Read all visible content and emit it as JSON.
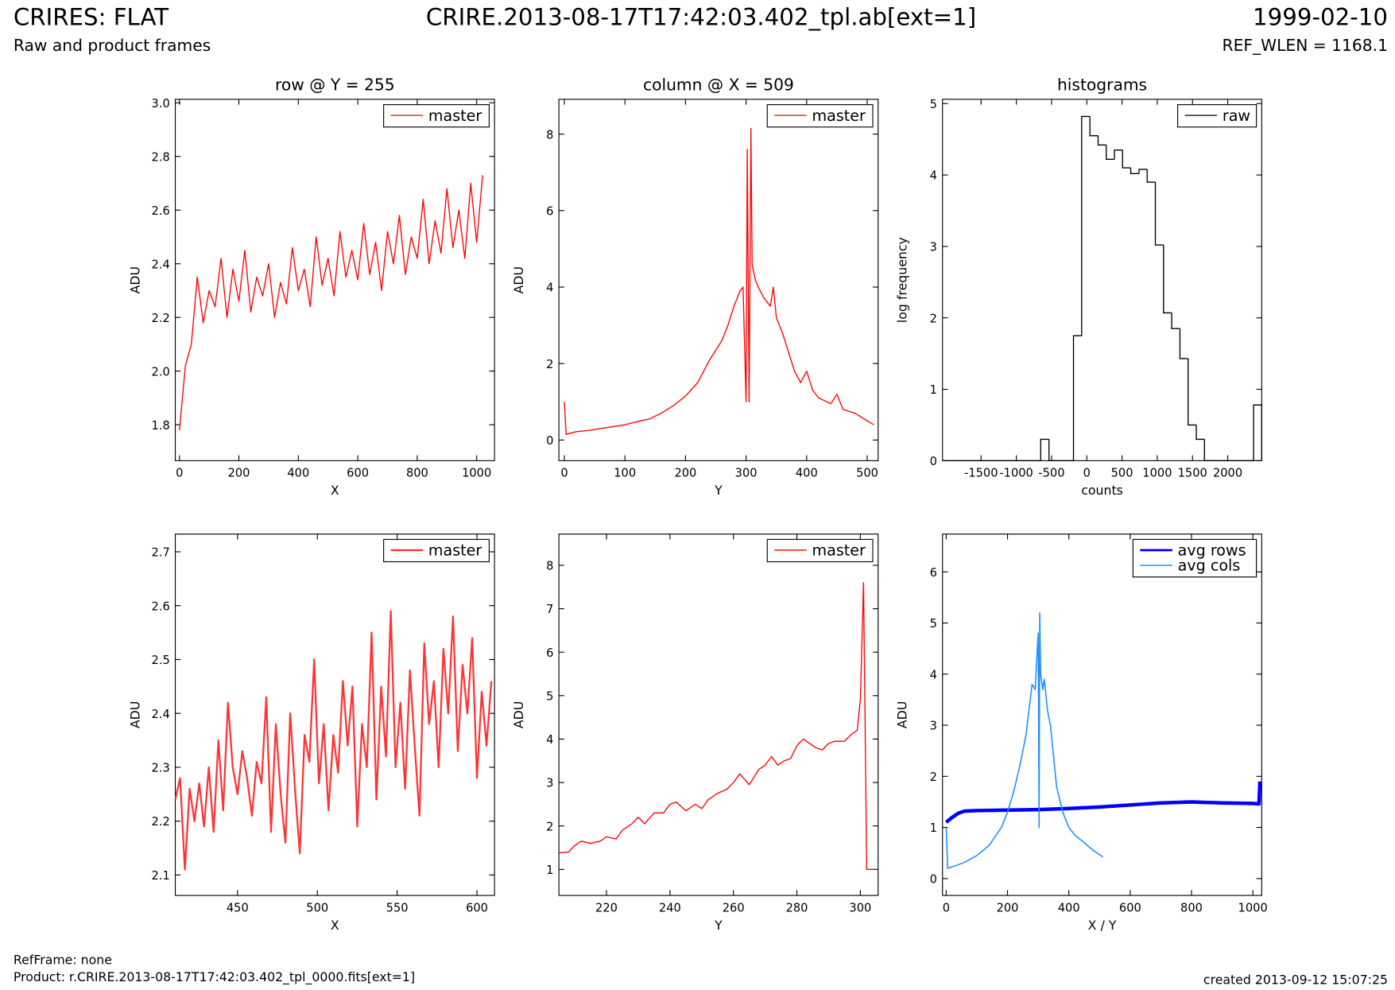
{
  "header": {
    "title": "CRIRES: FLAT",
    "subtitle": "Raw and product frames",
    "center": "CRIRE.2013-08-17T17:42:03.402_tpl.ab[ext=1]",
    "date": "1999-02-10",
    "ref_wlen": "REF_WLEN = 1168.1"
  },
  "footer": {
    "refframe": "RefFrame: none",
    "product": "Product: r.CRIRE.2013-08-17T17:42:03.402_tpl_0000.fits[ext=1]",
    "created": "created 2013-09-12 15:07:25"
  },
  "chart_data": [
    {
      "type": "line",
      "title": "row @ Y = 255",
      "xlabel": "X",
      "ylabel": "ADU",
      "xlim": [
        -14,
        1060
      ],
      "ylim": [
        1.666,
        3.013
      ],
      "xticks": [
        0,
        200,
        400,
        600,
        800,
        1000
      ],
      "yticks": [
        1.8,
        {
          "value": 2,
          "label": "2.0"
        },
        2.2,
        2.4,
        2.6,
        2.8,
        {
          "value": 3,
          "label": "3.0"
        }
      ],
      "legend": "upper right",
      "series": [
        {
          "name": "master",
          "color": "#ff0000",
          "width": 1.2,
          "x": [
            0,
            20,
            40,
            60,
            80,
            100,
            120,
            140,
            160,
            180,
            200,
            220,
            240,
            260,
            280,
            300,
            320,
            340,
            360,
            380,
            400,
            420,
            440,
            460,
            480,
            500,
            520,
            540,
            560,
            580,
            600,
            620,
            640,
            660,
            680,
            700,
            720,
            740,
            760,
            780,
            800,
            820,
            840,
            860,
            880,
            900,
            920,
            940,
            960,
            980,
            1000,
            1020
          ],
          "values": [
            1.78,
            2.02,
            2.1,
            2.35,
            2.18,
            2.3,
            2.24,
            2.42,
            2.2,
            2.38,
            2.26,
            2.45,
            2.22,
            2.35,
            2.28,
            2.4,
            2.2,
            2.33,
            2.25,
            2.46,
            2.3,
            2.38,
            2.24,
            2.5,
            2.32,
            2.42,
            2.28,
            2.52,
            2.35,
            2.45,
            2.34,
            2.55,
            2.36,
            2.48,
            2.3,
            2.52,
            2.4,
            2.58,
            2.36,
            2.5,
            2.42,
            2.64,
            2.4,
            2.56,
            2.44,
            2.68,
            2.46,
            2.6,
            2.42,
            2.7,
            2.48,
            2.73
          ]
        }
      ]
    },
    {
      "type": "line",
      "title": "column @ X = 509",
      "xlabel": "Y",
      "ylabel": "ADU",
      "xlim": [
        -9,
        518
      ],
      "ylim": [
        -0.54,
        8.91
      ],
      "xticks": [
        0,
        100,
        200,
        300,
        400,
        500
      ],
      "yticks": [
        0,
        2,
        4,
        6,
        8
      ],
      "legend": "upper right",
      "series": [
        {
          "name": "master",
          "color": "#ff0000",
          "width": 1.2,
          "x": [
            0,
            3,
            20,
            40,
            60,
            80,
            100,
            120,
            140,
            160,
            180,
            200,
            220,
            240,
            260,
            270,
            280,
            290,
            295,
            300,
            302,
            305,
            308,
            310,
            315,
            320,
            330,
            340,
            345,
            350,
            360,
            370,
            380,
            390,
            400,
            410,
            420,
            440,
            450,
            460,
            480,
            500,
            511
          ],
          "values": [
            1.0,
            0.15,
            0.22,
            0.25,
            0.3,
            0.35,
            0.4,
            0.48,
            0.55,
            0.7,
            0.9,
            1.15,
            1.5,
            2.1,
            2.6,
            3.0,
            3.5,
            3.9,
            4.0,
            1.0,
            7.6,
            1.0,
            8.15,
            4.6,
            4.2,
            4.0,
            3.7,
            3.5,
            4.0,
            3.2,
            2.8,
            2.3,
            1.8,
            1.5,
            1.8,
            1.3,
            1.1,
            0.95,
            1.2,
            0.8,
            0.7,
            0.5,
            0.4
          ]
        }
      ]
    },
    {
      "type": "histogram",
      "title": "histograms",
      "xlabel": "counts",
      "ylabel": "log frequency",
      "xlim": [
        -2048,
        2483
      ],
      "ylim": [
        0,
        5.06
      ],
      "xticks": [
        -1500,
        -1000,
        -500,
        0,
        500,
        1000,
        1500,
        2000
      ],
      "yticks": [
        0,
        1,
        2,
        3,
        4,
        5
      ],
      "legend": "upper right",
      "bins": [
        -2048,
        -1932,
        -1816,
        -1699,
        -1583,
        -1467,
        -1351,
        -1235,
        -1118,
        -1002,
        -886,
        -770,
        -654,
        -537,
        -421,
        -305,
        -189,
        -73,
        44,
        160,
        276,
        392,
        508,
        624,
        741,
        857,
        973,
        1089,
        1205,
        1322,
        1438,
        1554,
        1670,
        1786,
        1903,
        2019,
        2135,
        2251,
        2367,
        2483
      ],
      "series": [
        {
          "name": "raw",
          "color": "#000000",
          "width": 1.2,
          "values": [
            0,
            0,
            0,
            0,
            0,
            0,
            0,
            0,
            0,
            0,
            0,
            0,
            0.3,
            0,
            0,
            0,
            1.75,
            4.82,
            4.55,
            4.42,
            4.22,
            4.35,
            4.1,
            4.02,
            4.08,
            3.9,
            3.02,
            2.07,
            1.85,
            1.43,
            0.5,
            0.3,
            0,
            0,
            0,
            0,
            0,
            0,
            0.78
          ]
        }
      ]
    },
    {
      "type": "line",
      "xlabel": "X",
      "ylabel": "ADU",
      "xlim": [
        411,
        611
      ],
      "ylim": [
        2.062,
        2.733
      ],
      "xticks": [
        450,
        500,
        550,
        600
      ],
      "yticks": [
        2.1,
        2.2,
        2.3,
        2.4,
        2.5,
        2.6,
        2.7
      ],
      "legend": "upper right",
      "series": [
        {
          "name": "master",
          "color": "#ff3333",
          "width": 2,
          "x": [
            411,
            414,
            417,
            420,
            423,
            426,
            429,
            432,
            435,
            438,
            441,
            444,
            447,
            450,
            453,
            456,
            459,
            462,
            465,
            468,
            471,
            474,
            477,
            480,
            483,
            486,
            489,
            492,
            495,
            498,
            501,
            504,
            507,
            510,
            513,
            516,
            519,
            522,
            525,
            528,
            531,
            534,
            537,
            540,
            543,
            546,
            549,
            552,
            555,
            558,
            561,
            564,
            567,
            570,
            573,
            576,
            579,
            582,
            585,
            588,
            591,
            594,
            597,
            600,
            603,
            606,
            609
          ],
          "values": [
            2.24,
            2.28,
            2.11,
            2.26,
            2.2,
            2.27,
            2.19,
            2.3,
            2.18,
            2.35,
            2.22,
            2.42,
            2.3,
            2.25,
            2.33,
            2.28,
            2.21,
            2.31,
            2.27,
            2.43,
            2.18,
            2.38,
            2.25,
            2.16,
            2.4,
            2.26,
            2.14,
            2.36,
            2.31,
            2.5,
            2.27,
            2.38,
            2.22,
            2.36,
            2.29,
            2.46,
            2.34,
            2.45,
            2.19,
            2.38,
            2.3,
            2.55,
            2.24,
            2.45,
            2.32,
            2.59,
            2.3,
            2.42,
            2.26,
            2.48,
            2.34,
            2.21,
            2.53,
            2.38,
            2.46,
            2.3,
            2.52,
            2.4,
            2.58,
            2.33,
            2.49,
            2.4,
            2.54,
            2.28,
            2.44,
            2.34,
            2.46
          ]
        }
      ]
    },
    {
      "type": "line",
      "xlabel": "Y",
      "ylabel": "ADU",
      "xlim": [
        205,
        305.6
      ],
      "ylim": [
        0.4,
        8.72
      ],
      "xticks": [
        220,
        240,
        260,
        280,
        300
      ],
      "yticks": [
        1,
        2,
        3,
        4,
        5,
        6,
        7,
        8
      ],
      "legend": "upper right",
      "series": [
        {
          "name": "master",
          "color": "#ff0000",
          "width": 1.2,
          "x": [
            205,
            208,
            210,
            212,
            215,
            218,
            220,
            223,
            225,
            228,
            230,
            232,
            235,
            238,
            240,
            242,
            245,
            248,
            250,
            252,
            255,
            258,
            260,
            262,
            265,
            268,
            270,
            272,
            274,
            276,
            278,
            280,
            282,
            284,
            286,
            288,
            290,
            292,
            295,
            297,
            299,
            300,
            301,
            302,
            304
          ],
          "values": [
            1.38,
            1.4,
            1.55,
            1.65,
            1.6,
            1.65,
            1.75,
            1.7,
            1.9,
            2.05,
            2.2,
            2.05,
            2.3,
            2.3,
            2.5,
            2.55,
            2.35,
            2.5,
            2.4,
            2.6,
            2.75,
            2.85,
            3.0,
            3.2,
            2.95,
            3.3,
            3.4,
            3.6,
            3.4,
            3.5,
            3.55,
            3.85,
            4.0,
            3.9,
            3.8,
            3.75,
            3.9,
            3.95,
            3.95,
            4.1,
            4.2,
            4.9,
            7.6,
            1.0,
            1.0
          ]
        }
      ]
    },
    {
      "type": "line",
      "xlabel": "X / Y",
      "ylabel": "ADU",
      "xlim": [
        -12,
        1029
      ],
      "ylim": [
        -0.33,
        6.74
      ],
      "xticks": [
        0,
        200,
        400,
        600,
        800,
        1000
      ],
      "yticks": [
        0,
        1,
        2,
        3,
        4,
        5,
        6
      ],
      "legend": "upper right",
      "series": [
        {
          "name": "avg rows",
          "color": "#0000ff",
          "width": 4,
          "x": [
            0,
            20,
            40,
            60,
            100,
            200,
            300,
            400,
            500,
            600,
            700,
            800,
            900,
            1000,
            1020,
            1023
          ],
          "values": [
            1.1,
            1.2,
            1.28,
            1.32,
            1.33,
            1.34,
            1.35,
            1.37,
            1.4,
            1.44,
            1.48,
            1.5,
            1.48,
            1.47,
            1.46,
            1.9
          ]
        },
        {
          "name": "avg cols",
          "color": "#1e90ff",
          "width": 1.4,
          "x": [
            0,
            5,
            30,
            60,
            100,
            140,
            180,
            200,
            220,
            240,
            260,
            270,
            280,
            290,
            300,
            303,
            305,
            308,
            315,
            320,
            330,
            340,
            350,
            360,
            380,
            400,
            420,
            450,
            480,
            511
          ],
          "values": [
            1.0,
            0.2,
            0.25,
            0.32,
            0.45,
            0.65,
            1.0,
            1.3,
            1.7,
            2.2,
            2.8,
            3.3,
            3.8,
            3.7,
            4.8,
            1.0,
            5.2,
            4.0,
            3.7,
            3.9,
            3.3,
            3.0,
            2.4,
            1.8,
            1.3,
            1.0,
            0.85,
            0.7,
            0.55,
            0.42
          ]
        }
      ]
    }
  ]
}
